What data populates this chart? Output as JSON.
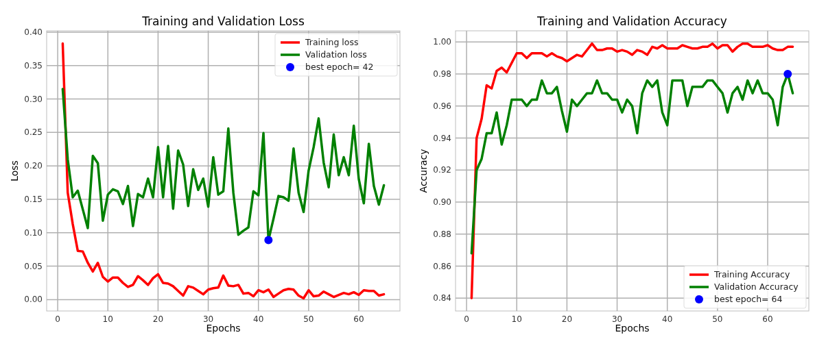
{
  "chart_data": [
    {
      "type": "line",
      "title": "Training and Validation Loss",
      "xlabel": "Epochs",
      "ylabel": "Loss",
      "x": [
        1,
        2,
        3,
        4,
        5,
        6,
        7,
        8,
        9,
        10,
        11,
        12,
        13,
        14,
        15,
        16,
        17,
        18,
        19,
        20,
        21,
        22,
        23,
        24,
        25,
        26,
        27,
        28,
        29,
        30,
        31,
        32,
        33,
        34,
        35,
        36,
        37,
        38,
        39,
        40,
        41,
        42,
        43,
        44,
        45,
        46,
        47,
        48,
        49,
        50,
        51,
        52,
        53,
        54,
        55,
        56,
        57,
        58,
        59,
        60,
        61,
        62,
        63,
        64,
        65
      ],
      "xlim": [
        -2.2,
        68.2
      ],
      "xticks": [
        0,
        10,
        20,
        30,
        40,
        50,
        60
      ],
      "ylim": [
        -0.017,
        0.402
      ],
      "yticks": [
        {
          "value": 0,
          "label": "0.00"
        },
        {
          "value": 0.05,
          "label": "0.05"
        },
        {
          "value": 0.1,
          "label": "0.10"
        },
        {
          "value": 0.15,
          "label": "0.15"
        },
        {
          "value": 0.2,
          "label": "0.20"
        },
        {
          "value": 0.25,
          "label": "0.25"
        },
        {
          "value": 0.3,
          "label": "0.30"
        },
        {
          "value": 0.35,
          "label": "0.35"
        },
        {
          "value": 0.4,
          "label": "0.40"
        }
      ],
      "grid": true,
      "legend": "top right",
      "series": [
        {
          "name": "Training loss",
          "color": "#ff0000",
          "values": [
            0.383,
            0.16,
            0.113,
            0.073,
            0.072,
            0.055,
            0.042,
            0.055,
            0.034,
            0.027,
            0.033,
            0.033,
            0.025,
            0.019,
            0.022,
            0.035,
            0.029,
            0.022,
            0.032,
            0.038,
            0.025,
            0.024,
            0.02,
            0.013,
            0.006,
            0.02,
            0.018,
            0.013,
            0.008,
            0.015,
            0.017,
            0.018,
            0.036,
            0.021,
            0.02,
            0.022,
            0.009,
            0.01,
            0.005,
            0.014,
            0.011,
            0.015,
            0.004,
            0.009,
            0.014,
            0.016,
            0.015,
            0.006,
            0.002,
            0.014,
            0.005,
            0.006,
            0.012,
            0.008,
            0.004,
            0.007,
            0.01,
            0.008,
            0.011,
            0.007,
            0.014,
            0.013,
            0.013,
            0.006,
            0.008
          ]
        },
        {
          "name": "Validation loss",
          "color": "#008000",
          "values": [
            0.315,
            0.21,
            0.153,
            0.163,
            0.135,
            0.107,
            0.215,
            0.204,
            0.118,
            0.157,
            0.165,
            0.162,
            0.143,
            0.17,
            0.11,
            0.158,
            0.153,
            0.181,
            0.153,
            0.228,
            0.153,
            0.23,
            0.136,
            0.223,
            0.202,
            0.14,
            0.195,
            0.164,
            0.181,
            0.139,
            0.213,
            0.157,
            0.162,
            0.256,
            0.16,
            0.097,
            0.103,
            0.108,
            0.162,
            0.156,
            0.249,
            0.089,
            0.121,
            0.155,
            0.153,
            0.148,
            0.226,
            0.16,
            0.131,
            0.193,
            0.228,
            0.271,
            0.205,
            0.168,
            0.247,
            0.186,
            0.213,
            0.186,
            0.26,
            0.18,
            0.144,
            0.233,
            0.17,
            0.142,
            0.171
          ]
        },
        {
          "name": "best epoch= 42",
          "type": "scatter",
          "color": "#0000ff",
          "x": [
            42
          ],
          "values": [
            0.089
          ]
        }
      ]
    },
    {
      "type": "line",
      "title": "Training and Validation Accuracy",
      "xlabel": "Epochs",
      "ylabel": "Accuracy",
      "x": [
        1,
        2,
        3,
        4,
        5,
        6,
        7,
        8,
        9,
        10,
        11,
        12,
        13,
        14,
        15,
        16,
        17,
        18,
        19,
        20,
        21,
        22,
        23,
        24,
        25,
        26,
        27,
        28,
        29,
        30,
        31,
        32,
        33,
        34,
        35,
        36,
        37,
        38,
        39,
        40,
        41,
        42,
        43,
        44,
        45,
        46,
        47,
        48,
        49,
        50,
        51,
        52,
        53,
        54,
        55,
        56,
        57,
        58,
        59,
        60,
        61,
        62,
        63,
        64,
        65
      ],
      "xlim": [
        -2.2,
        68.2
      ],
      "xticks": [
        0,
        10,
        20,
        30,
        40,
        50,
        60
      ],
      "ylim": [
        0.832,
        1.007
      ],
      "yticks": [
        {
          "value": 0.84,
          "label": "0.84"
        },
        {
          "value": 0.86,
          "label": "0.86"
        },
        {
          "value": 0.88,
          "label": "0.88"
        },
        {
          "value": 0.9,
          "label": "0.90"
        },
        {
          "value": 0.92,
          "label": "0.92"
        },
        {
          "value": 0.94,
          "label": "0.94"
        },
        {
          "value": 0.96,
          "label": "0.96"
        },
        {
          "value": 0.98,
          "label": "0.98"
        },
        {
          "value": 1,
          "label": "1.00"
        }
      ],
      "grid": true,
      "legend": "bottom right",
      "series": [
        {
          "name": "Training Accuracy",
          "color": "#ff0000",
          "values": [
            0.84,
            0.94,
            0.952,
            0.973,
            0.971,
            0.982,
            0.984,
            0.981,
            0.987,
            0.993,
            0.993,
            0.99,
            0.993,
            0.993,
            0.993,
            0.991,
            0.993,
            0.991,
            0.99,
            0.988,
            0.99,
            0.992,
            0.991,
            0.995,
            0.999,
            0.995,
            0.995,
            0.996,
            0.996,
            0.994,
            0.995,
            0.994,
            0.992,
            0.995,
            0.994,
            0.992,
            0.997,
            0.996,
            0.998,
            0.996,
            0.996,
            0.996,
            0.998,
            0.997,
            0.996,
            0.996,
            0.997,
            0.997,
            0.999,
            0.996,
            0.998,
            0.998,
            0.994,
            0.997,
            0.999,
            0.999,
            0.997,
            0.997,
            0.997,
            0.998,
            0.996,
            0.995,
            0.995,
            0.997,
            0.997
          ]
        },
        {
          "name": "Validation Accuracy",
          "color": "#008000",
          "values": [
            0.868,
            0.92,
            0.927,
            0.943,
            0.943,
            0.956,
            0.936,
            0.948,
            0.964,
            0.964,
            0.964,
            0.96,
            0.964,
            0.964,
            0.976,
            0.968,
            0.968,
            0.972,
            0.957,
            0.944,
            0.964,
            0.96,
            0.964,
            0.968,
            0.968,
            0.976,
            0.968,
            0.968,
            0.964,
            0.964,
            0.956,
            0.964,
            0.96,
            0.943,
            0.968,
            0.976,
            0.972,
            0.976,
            0.956,
            0.948,
            0.976,
            0.976,
            0.976,
            0.96,
            0.972,
            0.972,
            0.972,
            0.976,
            0.976,
            0.972,
            0.968,
            0.956,
            0.968,
            0.972,
            0.964,
            0.976,
            0.968,
            0.976,
            0.968,
            0.968,
            0.964,
            0.948,
            0.972,
            0.98,
            0.968
          ]
        },
        {
          "name": "best epoch= 64",
          "type": "scatter",
          "color": "#0000ff",
          "x": [
            64
          ],
          "values": [
            0.98
          ]
        }
      ]
    }
  ]
}
